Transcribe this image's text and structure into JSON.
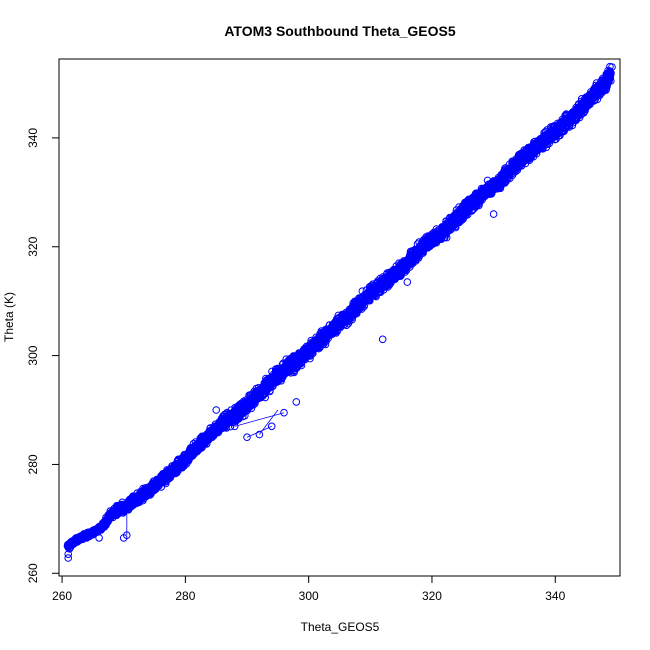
{
  "chart_data": {
    "type": "scatter",
    "title": "ATOM3 Southbound Theta_GEOS5",
    "xlabel": "Theta_GEOS5",
    "ylabel": "Theta (K)",
    "xlim": [
      259.5,
      350.5
    ],
    "ylim": [
      259.5,
      354.5
    ],
    "xticks": [
      260,
      280,
      300,
      320,
      340
    ],
    "yticks": [
      260,
      280,
      300,
      320,
      340
    ],
    "grid": false,
    "legend": "none",
    "marker": "open-circle",
    "color": "#0000ff",
    "series": [
      {
        "trend": [
          [
            261,
            265
          ],
          [
            263,
            266.5
          ],
          [
            265,
            267.5
          ],
          [
            266.5,
            268.5
          ],
          [
            268,
            271
          ],
          [
            270,
            272
          ],
          [
            272,
            273.5
          ],
          [
            275,
            276
          ],
          [
            278,
            279
          ],
          [
            280,
            281
          ],
          [
            283,
            284.5
          ],
          [
            286,
            287.5
          ],
          [
            289,
            290
          ],
          [
            292,
            293
          ],
          [
            295,
            296.5
          ],
          [
            298,
            299
          ],
          [
            301,
            302
          ],
          [
            304,
            305
          ],
          [
            307,
            308
          ],
          [
            310,
            311.5
          ],
          [
            313,
            314
          ],
          [
            316,
            317
          ],
          [
            319,
            320.5
          ],
          [
            322,
            323
          ],
          [
            325,
            326.5
          ],
          [
            328,
            329.5
          ],
          [
            331,
            332
          ],
          [
            334,
            335.5
          ],
          [
            337,
            338.5
          ],
          [
            340,
            341
          ],
          [
            343,
            344
          ],
          [
            346,
            347.5
          ],
          [
            348,
            350
          ],
          [
            349,
            352
          ]
        ],
        "outliers": [
          [
            261,
            263.5
          ],
          [
            261,
            262.8
          ],
          [
            261.2,
            264.5
          ],
          [
            264,
            266.5
          ],
          [
            266,
            266.5
          ],
          [
            270,
            266.5
          ],
          [
            270.5,
            267
          ],
          [
            285,
            290
          ],
          [
            288,
            287
          ],
          [
            290,
            285
          ],
          [
            292,
            285.5
          ],
          [
            294,
            287
          ],
          [
            296,
            289.5
          ],
          [
            298,
            291.5
          ],
          [
            312,
            303
          ],
          [
            316,
            313.5
          ],
          [
            325,
            327.5
          ],
          [
            330,
            326
          ],
          [
            338,
            338
          ]
        ]
      }
    ]
  }
}
